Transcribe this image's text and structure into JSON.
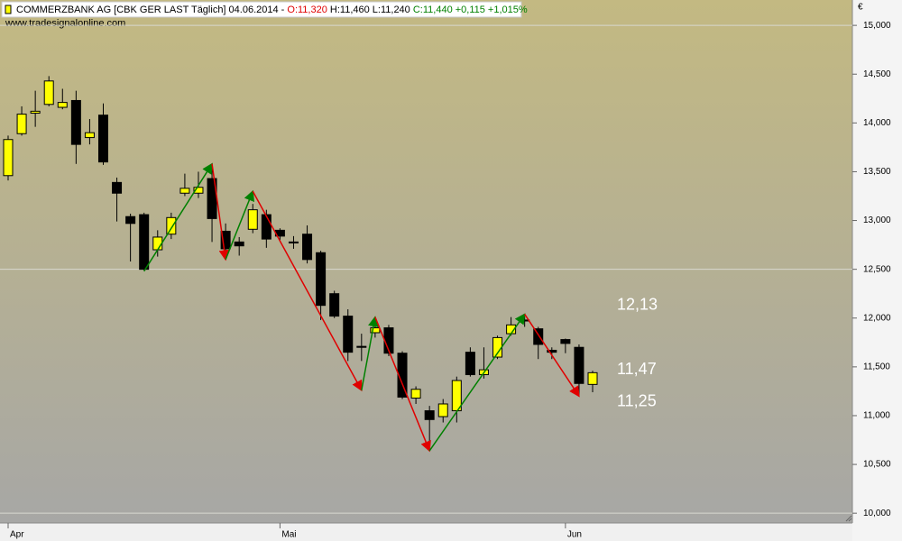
{
  "chart_data": {
    "type": "candlestick",
    "title": "COMMERZBANK AG [CBK GER LAST Täglich] 04.06.2014 -",
    "quote_open": "O:11,320",
    "quote_high_low": "H:11,460 L:11,240",
    "quote_close": "C:11,440 +0,115 +1,015%",
    "watermark": "www.tradesignalonline.com",
    "currency": "€",
    "up_color": "#ffff00",
    "down_color": "#000000",
    "categories": [
      "Apr",
      null,
      null,
      null,
      null,
      null,
      null,
      null,
      null,
      null,
      null,
      null,
      null,
      null,
      null,
      null,
      null,
      null,
      null,
      null,
      "Mai",
      null,
      null,
      null,
      null,
      null,
      null,
      null,
      null,
      null,
      null,
      null,
      null,
      null,
      null,
      null,
      null,
      null,
      null,
      null,
      null,
      "Jun",
      null,
      null
    ],
    "open": [
      13.46,
      13.89,
      14.1,
      14.19,
      14.16,
      14.23,
      13.85,
      14.08,
      13.39,
      13.04,
      13.06,
      12.7,
      12.86,
      13.28,
      13.28,
      13.43,
      12.89,
      12.78,
      12.91,
      13.06,
      12.9,
      12.78,
      12.86,
      12.67,
      12.25,
      12.02,
      11.71,
      11.85,
      11.9,
      11.64,
      11.18,
      11.05,
      10.99,
      11.05,
      11.65,
      11.42,
      11.6,
      11.84,
      11.98,
      11.89,
      11.67,
      11.78,
      11.7,
      11.32
    ],
    "high": [
      13.87,
      14.17,
      14.33,
      14.48,
      14.35,
      14.33,
      14.04,
      14.2,
      13.44,
      13.07,
      13.08,
      12.9,
      13.08,
      13.48,
      13.5,
      13.55,
      12.97,
      12.83,
      13.17,
      13.11,
      12.92,
      12.84,
      12.95,
      12.69,
      12.28,
      12.09,
      11.84,
      11.97,
      11.93,
      11.66,
      11.3,
      11.1,
      11.17,
      11.4,
      11.7,
      11.7,
      11.82,
      12.01,
      12.02,
      11.91,
      11.7,
      11.79,
      11.73,
      11.46
    ],
    "low": [
      13.41,
      13.87,
      13.96,
      14.17,
      14.14,
      13.58,
      13.78,
      13.57,
      12.99,
      12.58,
      12.49,
      12.63,
      12.81,
      13.25,
      13.23,
      12.78,
      12.63,
      12.64,
      12.87,
      12.72,
      12.8,
      12.71,
      12.56,
      11.98,
      12.0,
      11.56,
      11.56,
      11.8,
      11.61,
      11.17,
      11.12,
      10.68,
      10.93,
      10.93,
      11.4,
      11.38,
      11.58,
      11.82,
      11.91,
      11.58,
      11.58,
      11.64,
      11.21,
      11.24
    ],
    "close": [
      13.83,
      14.09,
      14.12,
      14.43,
      14.21,
      13.78,
      13.9,
      13.6,
      13.28,
      12.97,
      12.5,
      12.83,
      13.03,
      13.33,
      13.34,
      13.02,
      12.71,
      12.74,
      13.11,
      12.81,
      12.84,
      12.77,
      12.6,
      12.13,
      12.02,
      11.65,
      11.7,
      11.9,
      11.64,
      11.19,
      11.27,
      10.96,
      11.12,
      11.36,
      11.42,
      11.47,
      11.8,
      11.93,
      11.97,
      11.73,
      11.65,
      11.74,
      11.33,
      11.44
    ],
    "zigzag": {
      "x": [
        10,
        15,
        16,
        18,
        26,
        27,
        31,
        38,
        42
      ],
      "y": [
        12.48,
        13.58,
        12.6,
        13.3,
        11.26,
        12.01,
        10.64,
        12.04,
        11.2
      ],
      "up_color": "#008000",
      "down_color": "#e00000"
    },
    "annotations": [
      {
        "label": "12,13",
        "value": 12.13
      },
      {
        "label": "11,47",
        "value": 11.47
      },
      {
        "label": "11,25",
        "value": 11.25
      }
    ],
    "ylim": [
      9.9,
      15.26
    ],
    "yticks": [
      {
        "value": 10,
        "label": "10,000"
      },
      {
        "value": 10.5,
        "label": "10,500"
      },
      {
        "value": 11,
        "label": "11,000"
      },
      {
        "value": 11.5,
        "label": "11,500"
      },
      {
        "value": 12,
        "label": "12,000"
      },
      {
        "value": 12.5,
        "label": "12,500"
      },
      {
        "value": 13,
        "label": "13,000"
      },
      {
        "value": 13.5,
        "label": "13,500"
      },
      {
        "value": 14,
        "label": "14,000"
      },
      {
        "value": 14.5,
        "label": "14,500"
      },
      {
        "value": 15,
        "label": "15,000"
      }
    ]
  }
}
